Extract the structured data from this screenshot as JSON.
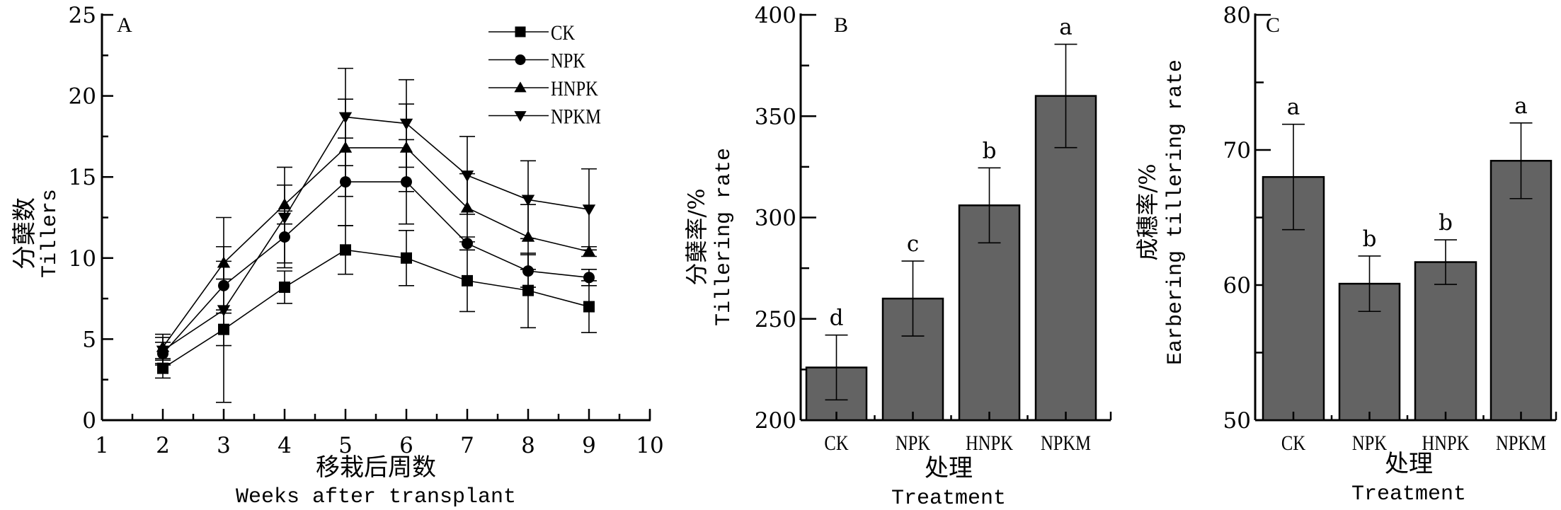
{
  "chart_data": [
    {
      "type": "line",
      "panel": "A",
      "xlabel_cn": "移栽后周数",
      "xlabel_en": "Weeks after transplant",
      "ylabel_cn": "分蘖数",
      "ylabel_en": "Tillers",
      "xlim": [
        1,
        10
      ],
      "ylim": [
        0,
        25
      ],
      "xticks": [
        "1",
        "2",
        "3",
        "4",
        "5",
        "6",
        "7",
        "8",
        "9",
        "10"
      ],
      "yticks": [
        "0",
        "5",
        "10",
        "15",
        "20",
        "25"
      ],
      "legend_position": "top-right",
      "x": [
        2,
        3,
        4,
        5,
        6,
        7,
        8,
        9
      ],
      "series": [
        {
          "name": "CK",
          "marker": "square",
          "values": [
            3.2,
            5.6,
            8.2,
            10.5,
            10.0,
            8.6,
            8.0,
            7.0
          ],
          "errors": [
            0.6,
            1.0,
            1.0,
            1.5,
            1.7,
            1.9,
            2.3,
            1.6
          ]
        },
        {
          "name": "NPK",
          "marker": "circle",
          "values": [
            4.1,
            8.3,
            11.3,
            14.7,
            14.7,
            10.9,
            9.2,
            8.8
          ],
          "errors": [
            0.7,
            1.5,
            1.6,
            2.7,
            2.6,
            0.4,
            1.0,
            0.5
          ]
        },
        {
          "name": "HNPK",
          "marker": "triangle-up",
          "values": [
            4.5,
            9.7,
            13.3,
            16.8,
            16.8,
            13.1,
            11.3,
            10.4
          ],
          "errors": [
            0.8,
            1.0,
            1.2,
            3.0,
            2.7,
            2.1,
            2.0,
            0.3
          ]
        },
        {
          "name": "NPKM",
          "marker": "triangle-down",
          "values": [
            4.3,
            6.8,
            12.5,
            18.7,
            18.3,
            15.1,
            13.6,
            13.0
          ],
          "errors": [
            0.8,
            5.7,
            3.1,
            3.0,
            2.7,
            2.4,
            2.4,
            2.5
          ]
        }
      ]
    },
    {
      "type": "bar",
      "panel": "B",
      "categories": [
        "CK",
        "NPK",
        "HNPK",
        "NPKM"
      ],
      "values": [
        226,
        260,
        306,
        360
      ],
      "errors": [
        16,
        18.5,
        18.5,
        25.5
      ],
      "letters": [
        "d",
        "c",
        "b",
        "a"
      ],
      "ylim": [
        200,
        400
      ],
      "yticks": [
        "200",
        "250",
        "300",
        "350",
        "400"
      ],
      "xlabel_cn": "处理",
      "xlabel_en": "Treatment",
      "ylabel_cn": "分蘖率/%",
      "ylabel_en": "Tillering rate",
      "bar_color": "#636363"
    },
    {
      "type": "bar",
      "panel": "C",
      "categories": [
        "CK",
        "NPK",
        "HNPK",
        "NPKM"
      ],
      "values": [
        68.0,
        60.1,
        61.7,
        69.2
      ],
      "errors": [
        3.9,
        2.05,
        1.65,
        2.8
      ],
      "letters": [
        "a",
        "b",
        "b",
        "a"
      ],
      "ylim": [
        50,
        80
      ],
      "yticks": [
        "50",
        "60",
        "70",
        "80"
      ],
      "xlabel_cn": "处理",
      "xlabel_en": "Treatment",
      "ylabel_cn": "成穗率/%",
      "ylabel_en": "Earbering tillering rate",
      "bar_color": "#636363"
    }
  ]
}
